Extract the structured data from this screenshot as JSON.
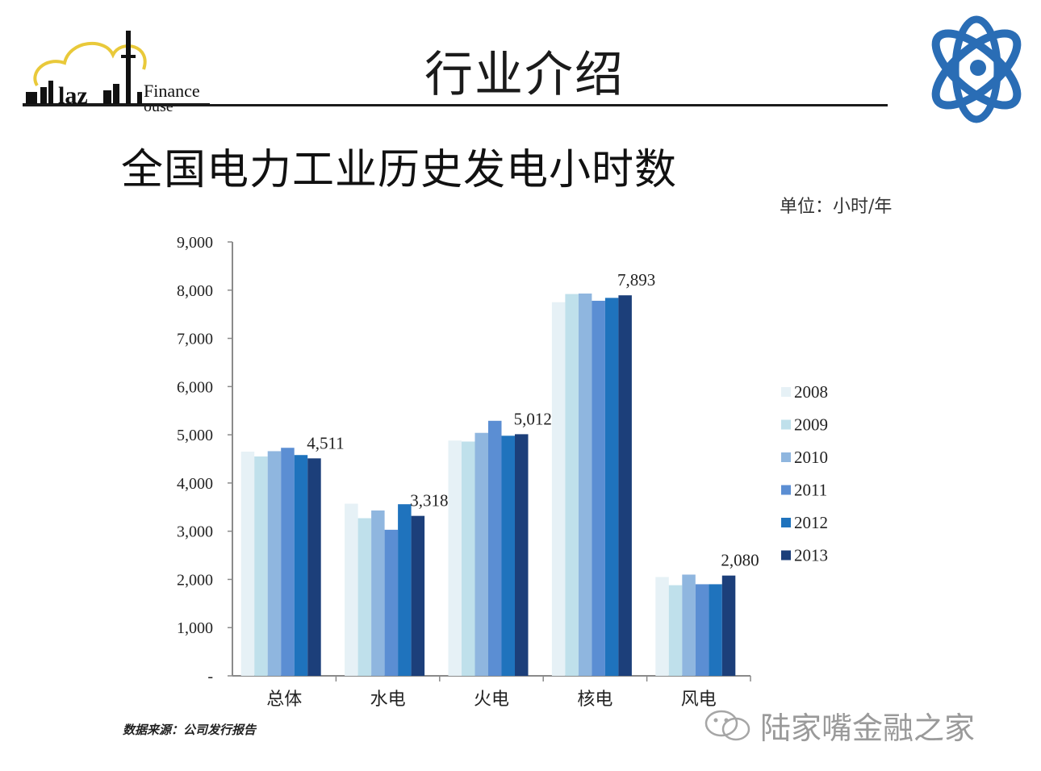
{
  "header": {
    "title": "行业介绍",
    "logo_text": "Finance",
    "logo_text2": "ouse",
    "logo_fragment": "laz"
  },
  "chart_title": "全国电力工业历史发电小时数",
  "unit_label": "单位：小时/年",
  "source_note": "数据来源：公司发行报告",
  "watermark": "陆家嘴金融之家",
  "colors": {
    "2008": "#e6f1f6",
    "2009": "#bfe0eb",
    "2010": "#8fb6df",
    "2011": "#5b8ed3",
    "2012": "#1f73bd",
    "2013": "#1c3f7a",
    "brand": "#2a6db5"
  },
  "chart_data": {
    "type": "bar",
    "title": "全国电力工业历史发电小时数",
    "categories": [
      "总体",
      "水电",
      "火电",
      "核电",
      "风电"
    ],
    "series": [
      {
        "name": "2008",
        "values": [
          4650,
          3570,
          4880,
          7750,
          2050
        ]
      },
      {
        "name": "2009",
        "values": [
          4550,
          3270,
          4860,
          7920,
          1880
        ]
      },
      {
        "name": "2010",
        "values": [
          4660,
          3430,
          5040,
          7930,
          2100
        ]
      },
      {
        "name": "2011",
        "values": [
          4730,
          3030,
          5290,
          7780,
          1900
        ]
      },
      {
        "name": "2012",
        "values": [
          4580,
          3560,
          4980,
          7840,
          1900
        ]
      },
      {
        "name": "2013",
        "values": [
          4511,
          3318,
          5012,
          7893,
          2080
        ]
      }
    ],
    "data_labels": [
      "4,511",
      "3,318",
      "5,012",
      "7,893",
      "2,080"
    ],
    "y_ticks": [
      "-",
      "1,000",
      "2,000",
      "3,000",
      "4,000",
      "5,000",
      "6,000",
      "7,000",
      "8,000",
      "9,000"
    ],
    "ylim": [
      0,
      9000
    ],
    "grid": false,
    "legend_position": "right"
  }
}
